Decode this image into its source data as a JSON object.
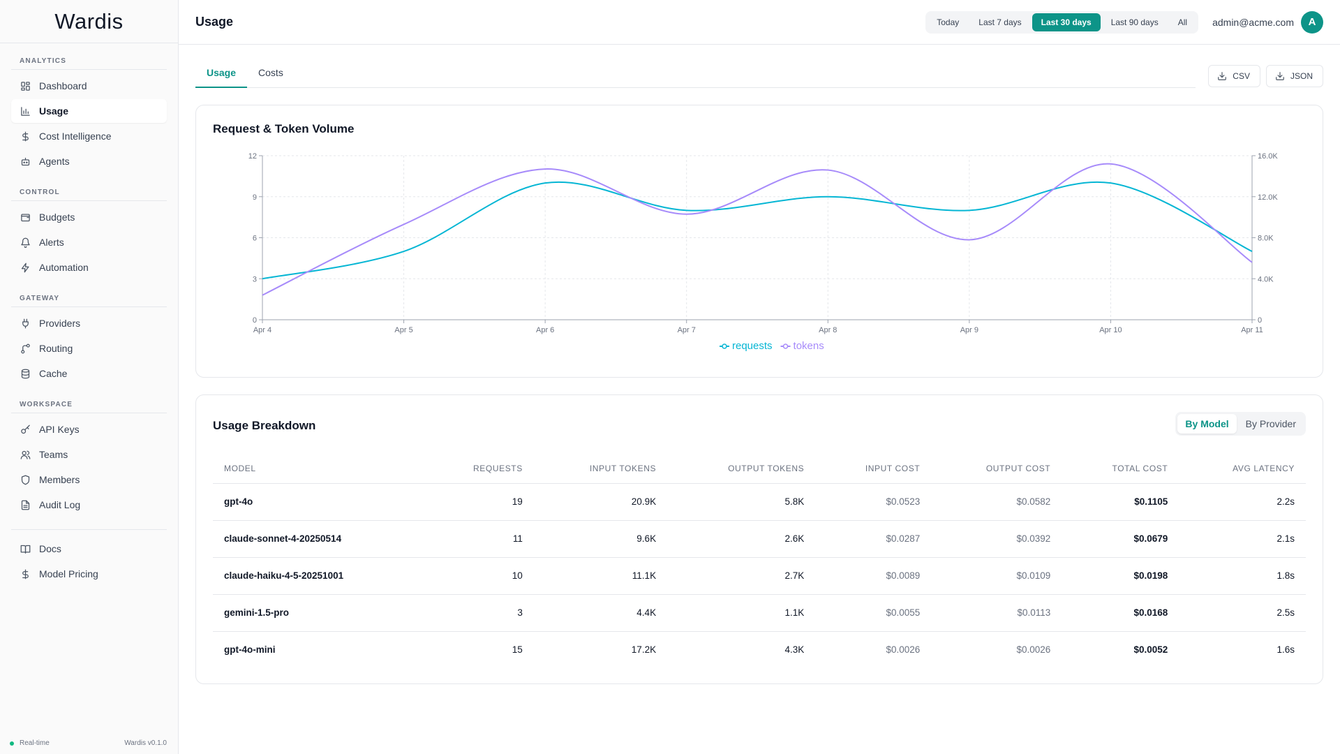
{
  "app": {
    "brand": "Wardis",
    "version": "Wardis v0.1.0",
    "status": "Real-time"
  },
  "sidebar": {
    "sections": [
      {
        "title": "ANALYTICS",
        "items": [
          {
            "label": "Dashboard",
            "icon": "dashboard-icon"
          },
          {
            "label": "Usage",
            "icon": "bar-chart-icon",
            "active": true
          },
          {
            "label": "Cost Intelligence",
            "icon": "dollar-icon"
          },
          {
            "label": "Agents",
            "icon": "bot-icon"
          }
        ]
      },
      {
        "title": "CONTROL",
        "items": [
          {
            "label": "Budgets",
            "icon": "wallet-icon"
          },
          {
            "label": "Alerts",
            "icon": "bell-icon"
          },
          {
            "label": "Automation",
            "icon": "zap-icon"
          }
        ]
      },
      {
        "title": "GATEWAY",
        "items": [
          {
            "label": "Providers",
            "icon": "plug-icon"
          },
          {
            "label": "Routing",
            "icon": "route-icon"
          },
          {
            "label": "Cache",
            "icon": "database-icon"
          }
        ]
      },
      {
        "title": "WORKSPACE",
        "items": [
          {
            "label": "API Keys",
            "icon": "key-icon"
          },
          {
            "label": "Teams",
            "icon": "users-icon"
          },
          {
            "label": "Members",
            "icon": "shield-icon"
          },
          {
            "label": "Audit Log",
            "icon": "file-icon"
          }
        ]
      }
    ],
    "bottom": [
      {
        "label": "Docs",
        "icon": "book-icon"
      },
      {
        "label": "Model Pricing",
        "icon": "dollar-icon"
      }
    ]
  },
  "header": {
    "title": "Usage",
    "ranges": [
      "Today",
      "Last 7 days",
      "Last 30 days",
      "Last 90 days",
      "All"
    ],
    "active_range": "Last 30 days",
    "user_email": "admin@acme.com",
    "avatar_initial": "A"
  },
  "tabs": [
    {
      "label": "Usage",
      "active": true
    },
    {
      "label": "Costs",
      "active": false
    }
  ],
  "export": {
    "csv": "CSV",
    "json": "JSON"
  },
  "chart_card": {
    "title": "Request & Token Volume"
  },
  "chart_data": {
    "type": "line",
    "title": "Request & Token Volume",
    "x": [
      "Apr 4",
      "Apr 5",
      "Apr 6",
      "Apr 7",
      "Apr 8",
      "Apr 9",
      "Apr 10",
      "Apr 11"
    ],
    "left_axis": {
      "ticks": [
        "0",
        "3",
        "6",
        "9",
        "12"
      ],
      "ylim": [
        0,
        12
      ]
    },
    "right_axis": {
      "ticks": [
        "0",
        "4.0K",
        "8.0K",
        "12.0K",
        "16.0K"
      ],
      "ylim": [
        0,
        16000
      ]
    },
    "series": [
      {
        "name": "requests",
        "axis": "left",
        "color": "#06b6d4",
        "values": [
          3,
          5,
          10,
          8,
          9,
          8,
          10,
          5
        ]
      },
      {
        "name": "tokens",
        "axis": "right",
        "color": "#a78bfa",
        "values": [
          2400,
          9300,
          14700,
          10300,
          14600,
          7800,
          15200,
          5600
        ]
      }
    ],
    "grid": true,
    "legend": "bottom"
  },
  "breakdown": {
    "title": "Usage Breakdown",
    "toggle": [
      "By Model",
      "By Provider"
    ],
    "active_toggle": "By Model",
    "columns": [
      "MODEL",
      "REQUESTS",
      "INPUT TOKENS",
      "OUTPUT TOKENS",
      "INPUT COST",
      "OUTPUT COST",
      "TOTAL COST",
      "AVG LATENCY"
    ],
    "rows": [
      [
        "gpt-4o",
        "19",
        "20.9K",
        "5.8K",
        "$0.0523",
        "$0.0582",
        "$0.1105",
        "2.2s"
      ],
      [
        "claude-sonnet-4-20250514",
        "11",
        "9.6K",
        "2.6K",
        "$0.0287",
        "$0.0392",
        "$0.0679",
        "2.1s"
      ],
      [
        "claude-haiku-4-5-20251001",
        "10",
        "11.1K",
        "2.7K",
        "$0.0089",
        "$0.0109",
        "$0.0198",
        "1.8s"
      ],
      [
        "gemini-1.5-pro",
        "3",
        "4.4K",
        "1.1K",
        "$0.0055",
        "$0.0113",
        "$0.0168",
        "2.5s"
      ],
      [
        "gpt-4o-mini",
        "15",
        "17.2K",
        "4.3K",
        "$0.0026",
        "$0.0026",
        "$0.0052",
        "1.6s"
      ]
    ]
  }
}
